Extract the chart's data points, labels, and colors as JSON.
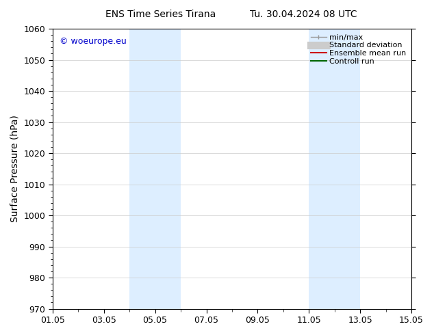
{
  "title": "ENS Time Series Tirana",
  "title2": "Tu. 30.04.2024 08 UTC",
  "ylabel": "Surface Pressure (hPa)",
  "ylim": [
    970,
    1060
  ],
  "yticks": [
    970,
    980,
    990,
    1000,
    1010,
    1020,
    1030,
    1040,
    1050,
    1060
  ],
  "x_start": 0,
  "x_end": 14,
  "xtick_labels": [
    "01.05",
    "03.05",
    "05.05",
    "07.05",
    "09.05",
    "11.05",
    "13.05",
    "15.05"
  ],
  "xtick_positions": [
    0,
    2,
    4,
    6,
    8,
    10,
    12,
    14
  ],
  "shaded_bands": [
    {
      "x_start": 3,
      "x_end": 5,
      "color": "#ddeeff"
    },
    {
      "x_start": 10,
      "x_end": 12,
      "color": "#ddeeff"
    }
  ],
  "watermark_text": "© woeurope.eu",
  "watermark_color": "#0000cc",
  "background_color": "#ffffff",
  "plot_bg_color": "#ffffff",
  "legend_items": [
    {
      "label": "min/max",
      "color": "#999999",
      "lw": 1
    },
    {
      "label": "Standard deviation",
      "color": "#cccccc",
      "lw": 6
    },
    {
      "label": "Ensemble mean run",
      "color": "#cc0000",
      "lw": 1.5
    },
    {
      "label": "Controll run",
      "color": "#006600",
      "lw": 1.5
    }
  ],
  "grid_color": "#cccccc",
  "spine_color": "#000000",
  "tick_color": "#000000",
  "font_size": 9,
  "title_font_size": 10
}
